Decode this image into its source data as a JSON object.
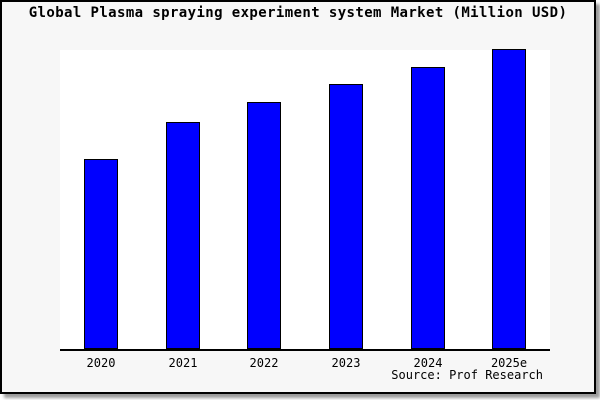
{
  "chart": {
    "title": "Global Plasma spraying experiment system Market (Million USD)",
    "source_note": "Source: Prof Research"
  },
  "colors": {
    "bar_fill": "#0000ff",
    "bar_border": "#000000",
    "canvas_background": "#f7f7f7",
    "plot_background": "#ffffff",
    "axis": "#000000",
    "frame_border": "#000000",
    "frame_shadow": "#9a9a9a"
  },
  "chart_data": {
    "type": "bar",
    "title": "Global Plasma spraying experiment system Market (Million USD)",
    "categories": [
      "2020",
      "2021",
      "2022",
      "2023",
      "2024",
      "2025e"
    ],
    "values": [
      63.3,
      75.7,
      82.3,
      88.3,
      94.0,
      100.0
    ],
    "series_note": "No y-axis or data labels shown; values are estimated relative index (tallest bar 2025e = 100)",
    "xlabel": "",
    "ylabel": "",
    "ylim": [
      0,
      100
    ],
    "grid": false,
    "legend": false,
    "y_axis_visible": false,
    "bar_color": "#0000ff"
  }
}
